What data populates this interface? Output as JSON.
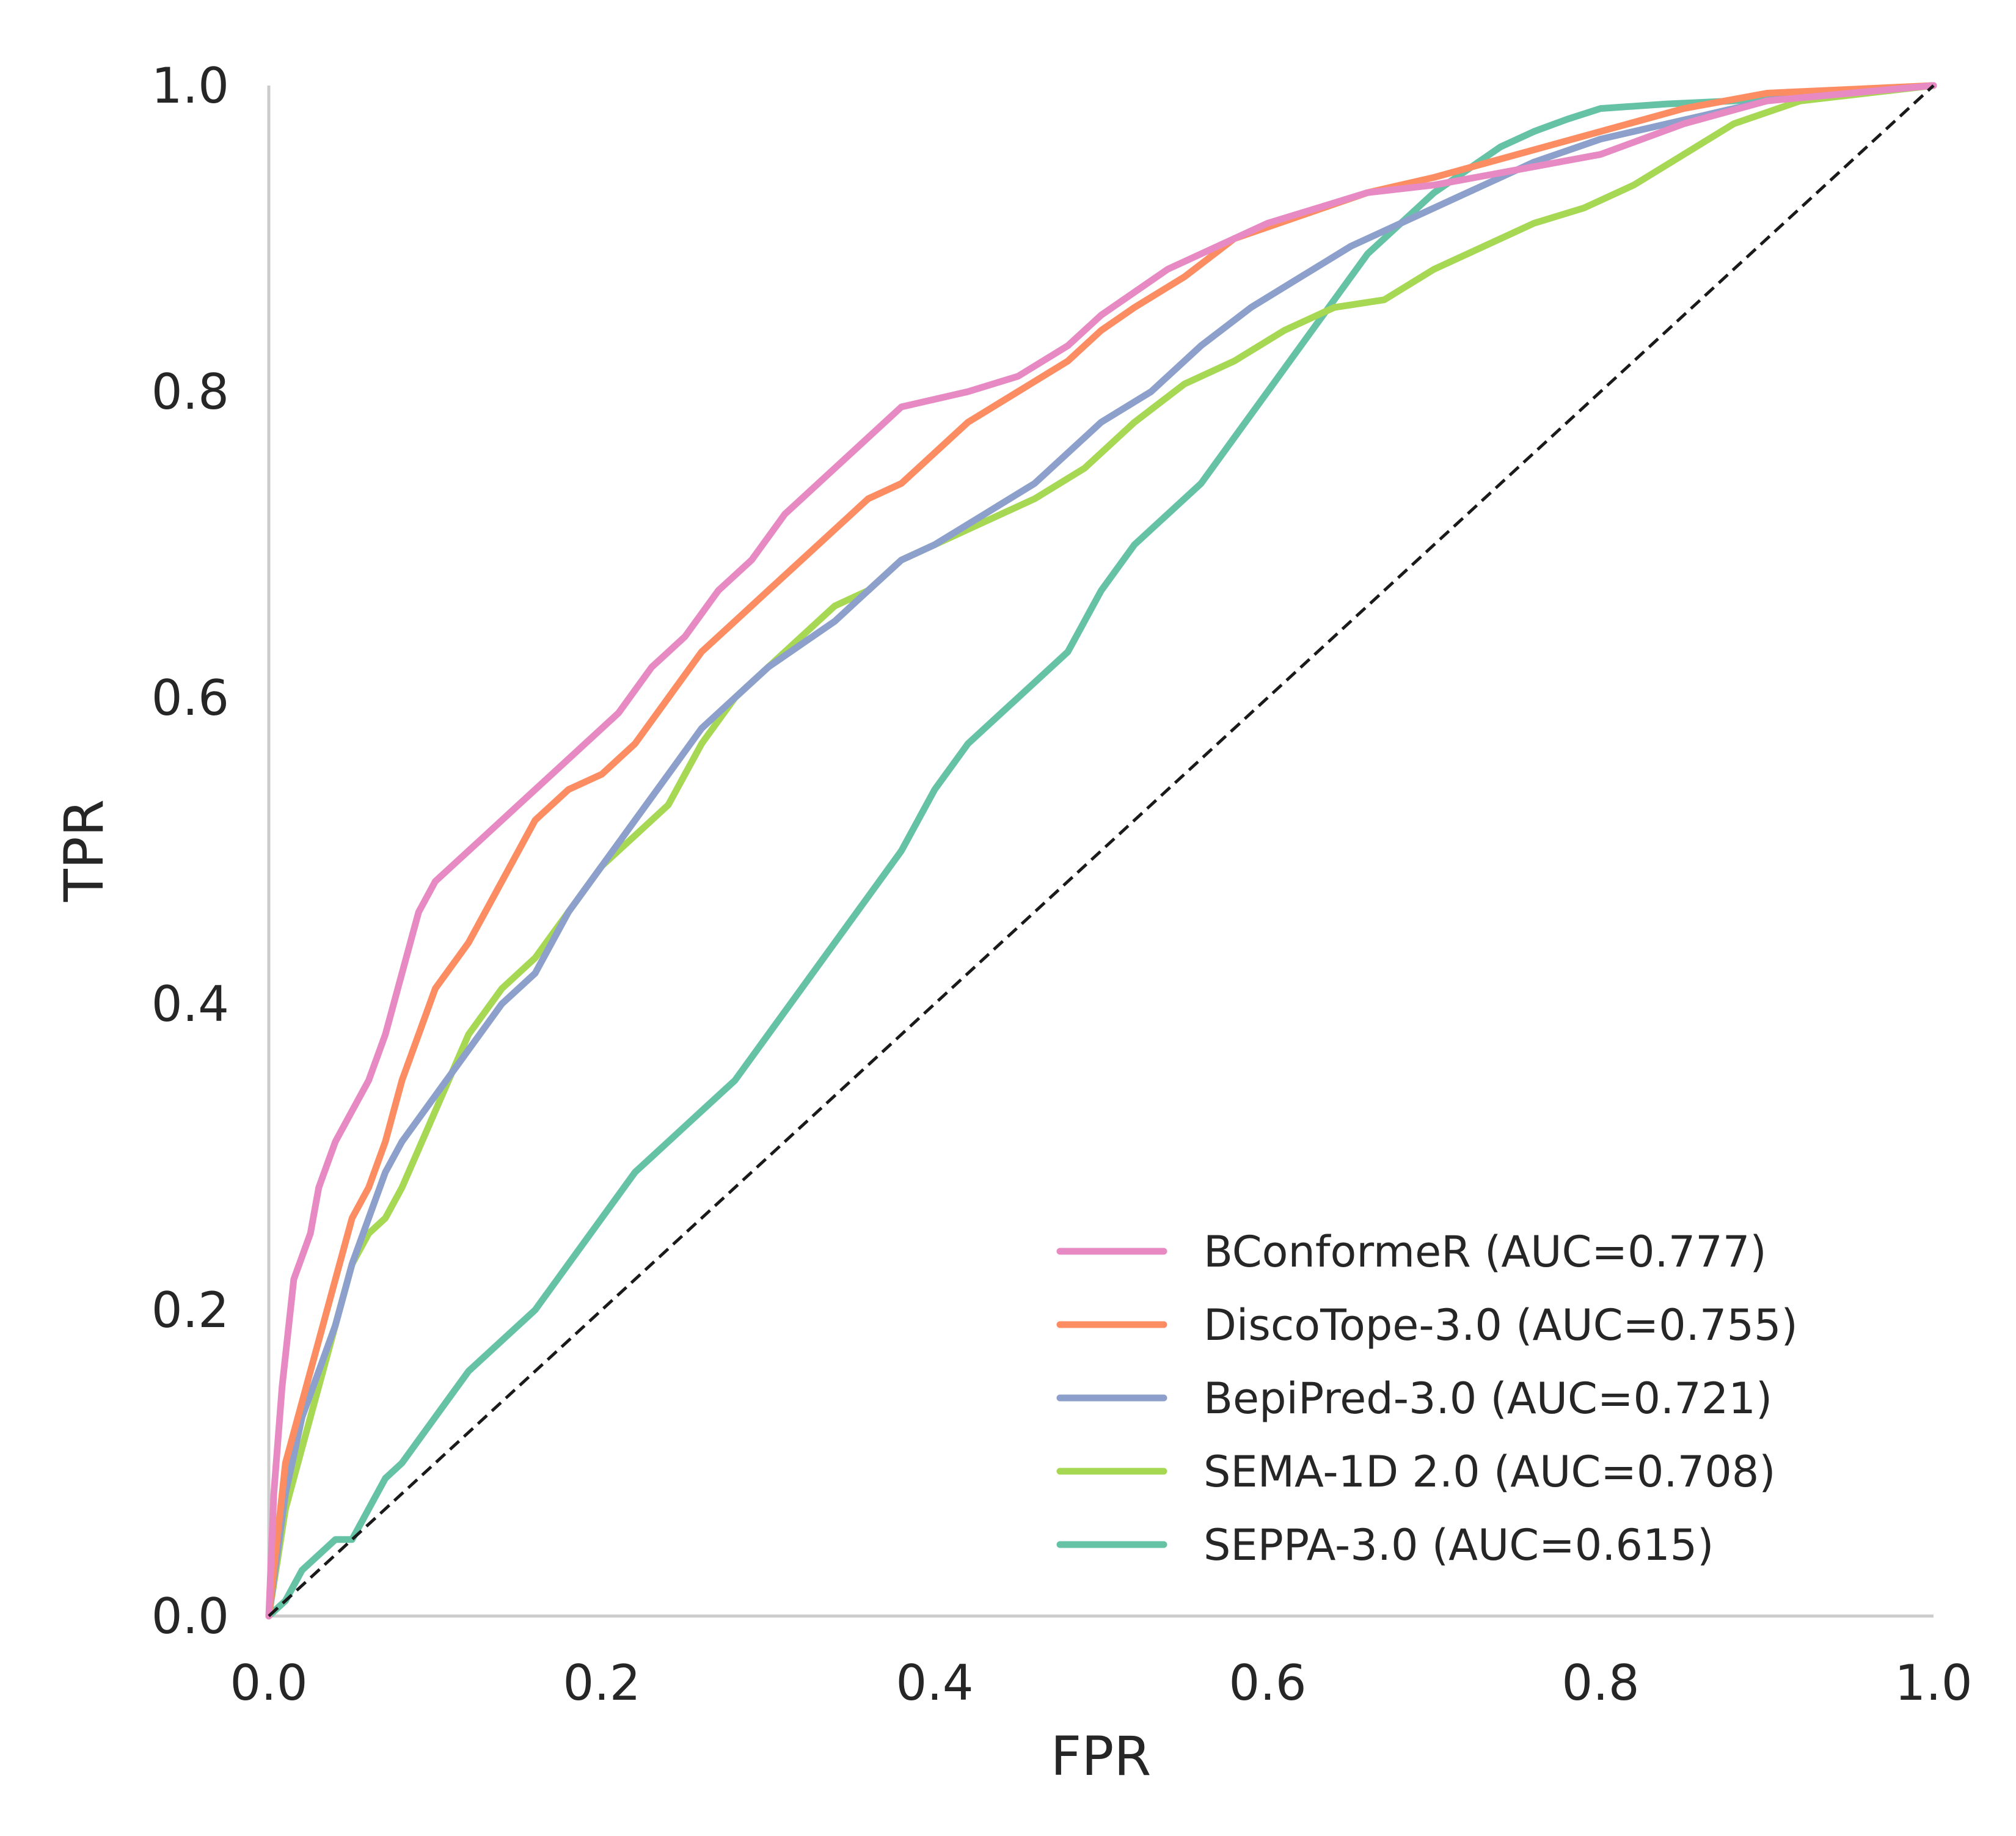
{
  "chart_data": {
    "type": "line",
    "title": "",
    "xlabel": "FPR",
    "ylabel": "TPR",
    "xlim": [
      0.0,
      1.0
    ],
    "ylim": [
      0.0,
      1.0
    ],
    "xticks": [
      "0.0",
      "0.2",
      "0.4",
      "0.6",
      "0.8",
      "1.0"
    ],
    "yticks": [
      "0.0",
      "0.2",
      "0.4",
      "0.6",
      "0.8",
      "1.0"
    ],
    "grid": false,
    "legend_position": "lower-right",
    "chance_line": {
      "style": "dashed",
      "color": "#1a1a1a",
      "points": [
        [
          0,
          0
        ],
        [
          1,
          1
        ]
      ]
    },
    "series": [
      {
        "name": "BConformeR (AUC=0.777)",
        "color": "#e78ac3",
        "x": [
          0,
          0.003,
          0.008,
          0.015,
          0.025,
          0.03,
          0.04,
          0.05,
          0.06,
          0.07,
          0.08,
          0.09,
          0.1,
          0.11,
          0.13,
          0.15,
          0.17,
          0.19,
          0.21,
          0.23,
          0.25,
          0.27,
          0.29,
          0.31,
          0.33,
          0.35,
          0.37,
          0.38,
          0.4,
          0.42,
          0.45,
          0.48,
          0.5,
          0.52,
          0.54,
          0.57,
          0.6,
          0.63,
          0.66,
          0.7,
          0.75,
          0.8,
          0.85,
          0.9,
          1.0
        ],
        "y": [
          0,
          0.08,
          0.15,
          0.22,
          0.25,
          0.28,
          0.31,
          0.33,
          0.35,
          0.38,
          0.42,
          0.46,
          0.48,
          0.49,
          0.51,
          0.53,
          0.55,
          0.57,
          0.59,
          0.62,
          0.64,
          0.67,
          0.69,
          0.72,
          0.74,
          0.76,
          0.78,
          0.79,
          0.795,
          0.8,
          0.81,
          0.83,
          0.85,
          0.865,
          0.88,
          0.895,
          0.91,
          0.92,
          0.93,
          0.935,
          0.945,
          0.955,
          0.975,
          0.99,
          1.0
        ]
      },
      {
        "name": "DiscoTope-3.0 (AUC=0.755)",
        "color": "#fc8d62",
        "x": [
          0,
          0.01,
          0.02,
          0.03,
          0.04,
          0.05,
          0.06,
          0.07,
          0.08,
          0.1,
          0.12,
          0.14,
          0.16,
          0.18,
          0.2,
          0.22,
          0.24,
          0.26,
          0.28,
          0.3,
          0.32,
          0.34,
          0.36,
          0.38,
          0.4,
          0.42,
          0.45,
          0.48,
          0.5,
          0.52,
          0.55,
          0.58,
          0.62,
          0.66,
          0.7,
          0.75,
          0.8,
          0.85,
          0.9,
          1.0
        ],
        "y": [
          0,
          0.1,
          0.14,
          0.18,
          0.22,
          0.26,
          0.28,
          0.31,
          0.35,
          0.41,
          0.44,
          0.48,
          0.52,
          0.54,
          0.55,
          0.57,
          0.6,
          0.63,
          0.65,
          0.67,
          0.69,
          0.71,
          0.73,
          0.74,
          0.76,
          0.78,
          0.8,
          0.82,
          0.84,
          0.855,
          0.875,
          0.9,
          0.915,
          0.93,
          0.94,
          0.955,
          0.97,
          0.985,
          0.995,
          1.0
        ]
      },
      {
        "name": "BepiPred-3.0 (AUC=0.721)",
        "color": "#8da0cb",
        "x": [
          0,
          0.01,
          0.02,
          0.03,
          0.04,
          0.05,
          0.06,
          0.07,
          0.08,
          0.1,
          0.12,
          0.14,
          0.16,
          0.18,
          0.2,
          0.22,
          0.24,
          0.26,
          0.28,
          0.3,
          0.32,
          0.34,
          0.36,
          0.38,
          0.4,
          0.43,
          0.46,
          0.48,
          0.5,
          0.53,
          0.56,
          0.59,
          0.62,
          0.65,
          0.68,
          0.72,
          0.76,
          0.8,
          0.84,
          0.88,
          0.92,
          1.0
        ],
        "y": [
          0,
          0.08,
          0.13,
          0.16,
          0.19,
          0.23,
          0.26,
          0.29,
          0.31,
          0.34,
          0.37,
          0.4,
          0.42,
          0.46,
          0.49,
          0.52,
          0.55,
          0.58,
          0.6,
          0.62,
          0.635,
          0.65,
          0.67,
          0.69,
          0.7,
          0.72,
          0.74,
          0.76,
          0.78,
          0.8,
          0.83,
          0.855,
          0.875,
          0.895,
          0.91,
          0.93,
          0.95,
          0.965,
          0.975,
          0.985,
          0.995,
          1.0
        ]
      },
      {
        "name": "SEMA-1D 2.0 (AUC=0.708)",
        "color": "#a6d854",
        "x": [
          0,
          0.01,
          0.02,
          0.03,
          0.04,
          0.05,
          0.06,
          0.07,
          0.08,
          0.1,
          0.12,
          0.14,
          0.16,
          0.18,
          0.2,
          0.22,
          0.24,
          0.26,
          0.28,
          0.3,
          0.32,
          0.34,
          0.36,
          0.38,
          0.4,
          0.43,
          0.46,
          0.49,
          0.52,
          0.55,
          0.58,
          0.61,
          0.64,
          0.67,
          0.7,
          0.73,
          0.76,
          0.79,
          0.82,
          0.85,
          0.88,
          0.92,
          1.0
        ],
        "y": [
          0,
          0.07,
          0.11,
          0.15,
          0.19,
          0.23,
          0.25,
          0.26,
          0.28,
          0.33,
          0.38,
          0.41,
          0.43,
          0.46,
          0.49,
          0.51,
          0.53,
          0.57,
          0.6,
          0.62,
          0.64,
          0.66,
          0.67,
          0.69,
          0.7,
          0.715,
          0.73,
          0.75,
          0.78,
          0.805,
          0.82,
          0.84,
          0.855,
          0.86,
          0.88,
          0.895,
          0.91,
          0.92,
          0.935,
          0.955,
          0.975,
          0.99,
          1.0
        ]
      },
      {
        "name": "SEPPA-3.0 (AUC=0.615)",
        "color": "#66c2a5",
        "x": [
          0,
          0.01,
          0.02,
          0.03,
          0.04,
          0.05,
          0.06,
          0.07,
          0.08,
          0.1,
          0.12,
          0.14,
          0.16,
          0.18,
          0.2,
          0.22,
          0.24,
          0.26,
          0.28,
          0.3,
          0.32,
          0.34,
          0.36,
          0.38,
          0.4,
          0.42,
          0.44,
          0.46,
          0.48,
          0.5,
          0.52,
          0.54,
          0.56,
          0.58,
          0.6,
          0.62,
          0.64,
          0.66,
          0.68,
          0.7,
          0.72,
          0.74,
          0.76,
          0.78,
          0.8,
          0.84,
          0.88,
          0.92,
          1.0
        ],
        "y": [
          0,
          0.01,
          0.03,
          0.04,
          0.05,
          0.05,
          0.07,
          0.09,
          0.1,
          0.13,
          0.16,
          0.18,
          0.2,
          0.23,
          0.26,
          0.29,
          0.31,
          0.33,
          0.35,
          0.38,
          0.41,
          0.44,
          0.47,
          0.5,
          0.54,
          0.57,
          0.59,
          0.61,
          0.63,
          0.67,
          0.7,
          0.72,
          0.74,
          0.77,
          0.8,
          0.83,
          0.86,
          0.89,
          0.91,
          0.93,
          0.945,
          0.96,
          0.97,
          0.978,
          0.985,
          0.988,
          0.99,
          0.994,
          1.0
        ]
      }
    ]
  }
}
